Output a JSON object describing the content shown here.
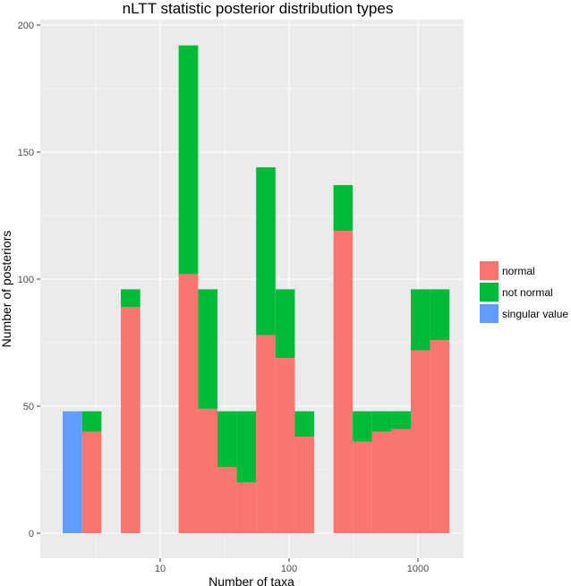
{
  "chart_data": {
    "type": "bar",
    "stacked": true,
    "title": "nLTT statistic posterior distribution types",
    "xlabel": "Number of taxa",
    "ylabel": "Number of posteriors",
    "x_scale": "log10",
    "x_ticks": [
      "10",
      "100",
      "1000"
    ],
    "y_ticks": [
      "0",
      "50",
      "100",
      "150",
      "200"
    ],
    "ylim": [
      0,
      200
    ],
    "legend_position": "right",
    "bins": [
      {
        "from": 1.75,
        "to": 2.48,
        "normal": 0,
        "not_normal": 0,
        "singular_value": 48
      },
      {
        "from": 2.48,
        "to": 3.5,
        "normal": 40,
        "not_normal": 8,
        "singular_value": 0
      },
      {
        "from": 4.95,
        "to": 7.0,
        "normal": 89,
        "not_normal": 7,
        "singular_value": 0
      },
      {
        "from": 13.9,
        "to": 19.7,
        "normal": 102,
        "not_normal": 90,
        "singular_value": 0
      },
      {
        "from": 19.7,
        "to": 27.8,
        "normal": 49,
        "not_normal": 47,
        "singular_value": 0
      },
      {
        "from": 27.8,
        "to": 39.3,
        "normal": 26,
        "not_normal": 22,
        "singular_value": 0
      },
      {
        "from": 39.3,
        "to": 55.5,
        "normal": 20,
        "not_normal": 28,
        "singular_value": 0
      },
      {
        "from": 55.5,
        "to": 78.4,
        "normal": 78,
        "not_normal": 66,
        "singular_value": 0
      },
      {
        "from": 78.4,
        "to": 110.8,
        "normal": 69,
        "not_normal": 27,
        "singular_value": 0
      },
      {
        "from": 110.8,
        "to": 156.5,
        "normal": 38,
        "not_normal": 10,
        "singular_value": 0
      },
      {
        "from": 221,
        "to": 312,
        "normal": 119,
        "not_normal": 18,
        "singular_value": 0
      },
      {
        "from": 312,
        "to": 441,
        "normal": 36,
        "not_normal": 12,
        "singular_value": 0
      },
      {
        "from": 441,
        "to": 623,
        "normal": 40,
        "not_normal": 8,
        "singular_value": 0
      },
      {
        "from": 623,
        "to": 880,
        "normal": 41,
        "not_normal": 7,
        "singular_value": 0
      },
      {
        "from": 880,
        "to": 1243,
        "normal": 72,
        "not_normal": 24,
        "singular_value": 0
      },
      {
        "from": 1243,
        "to": 1756,
        "normal": 76,
        "not_normal": 20,
        "singular_value": 0
      }
    ],
    "series": [
      {
        "key": "normal",
        "name": "normal",
        "color": "#F8766D"
      },
      {
        "key": "not_normal",
        "name": "not normal",
        "color": "#00BA38"
      },
      {
        "key": "singular_value",
        "name": "singular value",
        "color": "#619CFF"
      }
    ]
  }
}
